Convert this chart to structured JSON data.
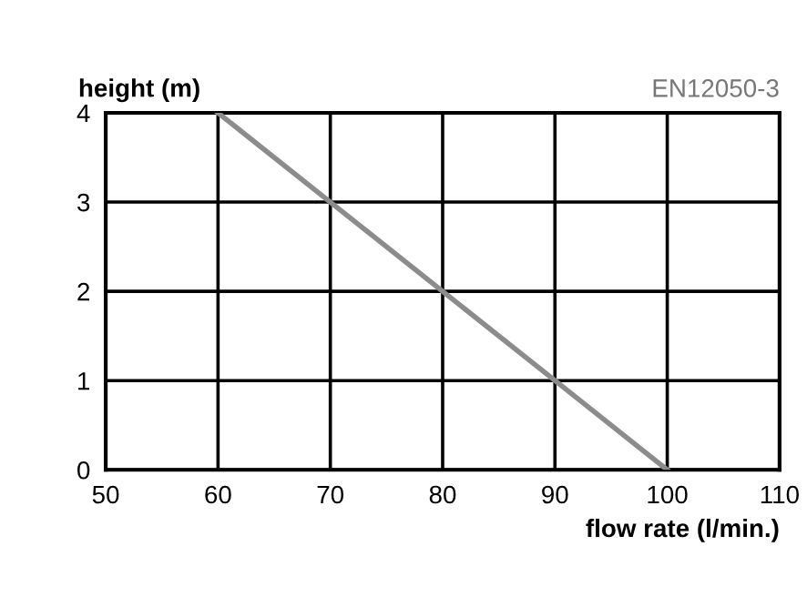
{
  "chart_data": {
    "type": "line",
    "xlabel": "flow rate (l/min.)",
    "ylabel": "height (m)",
    "annotations": [
      "EN12050-3"
    ],
    "series": [
      {
        "x": [
          60,
          70,
          80,
          90,
          100
        ],
        "values": [
          4,
          3,
          2,
          1,
          0
        ],
        "color": "#8c8c8c"
      }
    ],
    "xlim": [
      50,
      110
    ],
    "xticks": [
      50,
      60,
      70,
      80,
      90,
      100,
      110
    ],
    "ylim": [
      0,
      4
    ],
    "yticks": [
      0,
      1,
      2,
      3,
      4
    ],
    "grid": true,
    "marker": "none",
    "line_style": "solid"
  }
}
